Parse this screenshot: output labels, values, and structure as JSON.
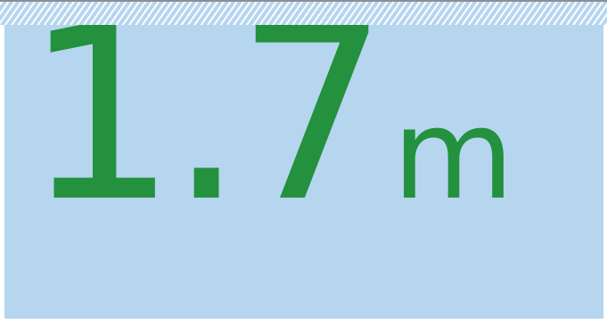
{
  "statistic": {
    "value": "1.7",
    "unit": "m"
  },
  "colors": {
    "panel_background": "#b6d5ef",
    "hatch_stripe": "#ffffff",
    "top_rule": "#8a8f96",
    "value_text": "#23913d"
  }
}
